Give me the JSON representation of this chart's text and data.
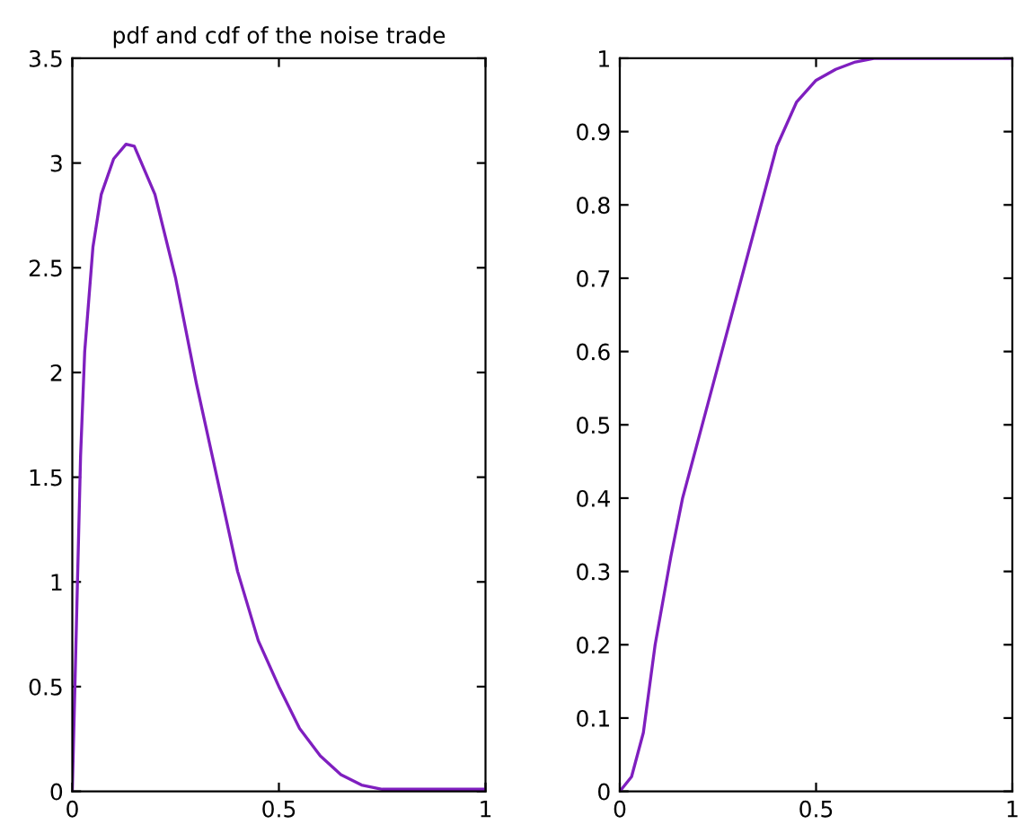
{
  "chart_data": [
    {
      "type": "line",
      "title": "pdf and cdf of the noise trade",
      "xlim": [
        0,
        1
      ],
      "ylim": [
        0,
        3.5
      ],
      "xticks": [
        0,
        0.5,
        1
      ],
      "yticks": [
        0,
        0.5,
        1,
        1.5,
        2,
        2.5,
        3,
        3.5
      ],
      "grid": false,
      "legend": false,
      "series": [
        {
          "color": "#7f1fbf",
          "x": [
            0,
            0.01,
            0.02,
            0.03,
            0.05,
            0.07,
            0.1,
            0.13,
            0.15,
            0.2,
            0.25,
            0.3,
            0.35,
            0.4,
            0.45,
            0.5,
            0.55,
            0.6,
            0.65,
            0.7,
            0.75,
            0.8,
            1
          ],
          "values": [
            0,
            0.8,
            1.6,
            2.1,
            2.6,
            2.85,
            3.02,
            3.09,
            3.08,
            2.85,
            2.45,
            1.95,
            1.5,
            1.05,
            0.72,
            0.5,
            0.3,
            0.17,
            0.08,
            0.03,
            0.01,
            0.01,
            0.01
          ]
        }
      ]
    },
    {
      "type": "line",
      "xlim": [
        0,
        1
      ],
      "ylim": [
        0,
        1
      ],
      "xticks": [
        0,
        0.5,
        1
      ],
      "yticks": [
        0,
        0.1,
        0.2,
        0.3,
        0.4,
        0.5,
        0.6,
        0.7,
        0.8,
        0.9,
        1
      ],
      "grid": false,
      "legend": false,
      "series": [
        {
          "color": "#7f1fbf",
          "x": [
            0,
            0.03,
            0.06,
            0.09,
            0.13,
            0.16,
            0.2,
            0.26,
            0.3,
            0.35,
            0.4,
            0.45,
            0.5,
            0.55,
            0.6,
            0.65,
            1
          ],
          "values": [
            0,
            0.02,
            0.08,
            0.2,
            0.32,
            0.4,
            0.48,
            0.6,
            0.68,
            0.78,
            0.88,
            0.94,
            0.97,
            0.985,
            0.995,
            1,
            1
          ]
        }
      ]
    }
  ]
}
